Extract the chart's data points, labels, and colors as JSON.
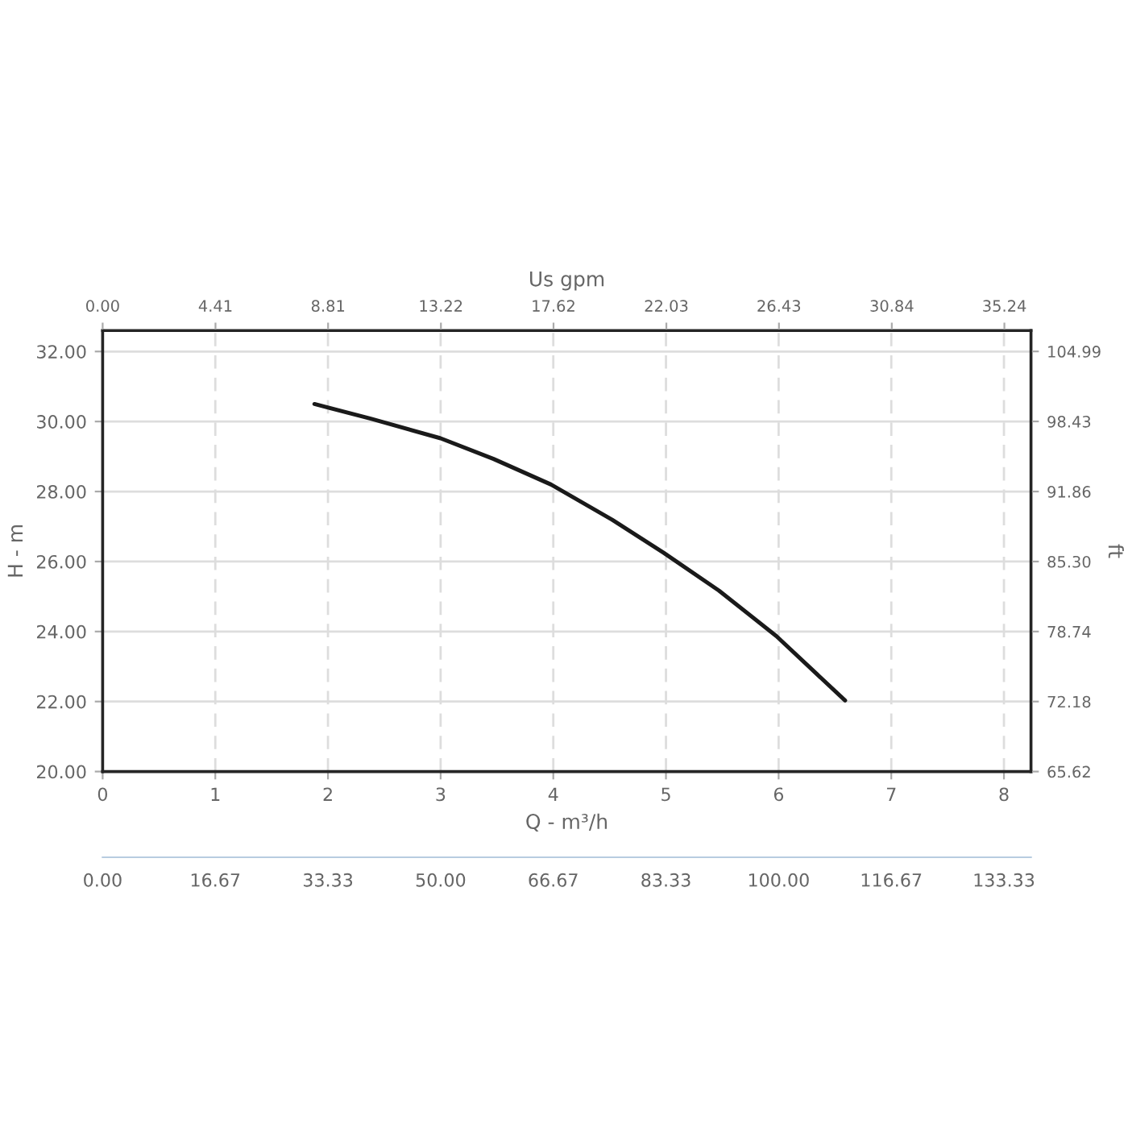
{
  "chart_data": {
    "type": "line",
    "xlabel": "Q - m³/h",
    "ylabel": "H - m",
    "y2label": "ft",
    "x2label": "Us gpm",
    "xlim": [
      0,
      8.24
    ],
    "xticks": [
      0,
      1,
      2,
      3,
      4,
      5,
      6,
      7,
      8
    ],
    "ylim": [
      20,
      32.6
    ],
    "yticks": [
      {
        "value": 20,
        "label": "20.00"
      },
      {
        "value": 22,
        "label": "22.00"
      },
      {
        "value": 24,
        "label": "24.00"
      },
      {
        "value": 26,
        "label": "26.00"
      },
      {
        "value": 28,
        "label": "28.00"
      },
      {
        "value": 30,
        "label": "30.00"
      },
      {
        "value": 32,
        "label": "32.00"
      }
    ],
    "y2lim": [
      65.62,
      106.95
    ],
    "y2ticks": [
      65.62,
      72.18,
      78.74,
      {
        "value": 85.3,
        "label": "85.30"
      },
      91.86,
      98.43,
      104.99
    ],
    "x2lim": [
      0,
      36.28
    ],
    "x2ticks": [
      {
        "value": 0,
        "label": "0.00"
      },
      4.41,
      8.81,
      13.22,
      17.62,
      22.03,
      26.43,
      30.84,
      35.24
    ],
    "annotations": [
      "0.00",
      "16.67",
      "33.33",
      "50.00",
      "66.67",
      "83.33",
      "100.00",
      "116.67",
      "133.33"
    ],
    "grid": true,
    "marker": "none",
    "line_style": "solid",
    "series": [
      {
        "color": "#1a1a1a",
        "x": [
          1.88,
          2.38,
          3.0,
          3.47,
          3.98,
          4.52,
          4.98,
          5.47,
          5.98,
          6.59
        ],
        "values": [
          30.5,
          30.08,
          29.52,
          28.93,
          28.2,
          27.2,
          26.25,
          25.17,
          23.87,
          22.03
        ]
      }
    ]
  }
}
